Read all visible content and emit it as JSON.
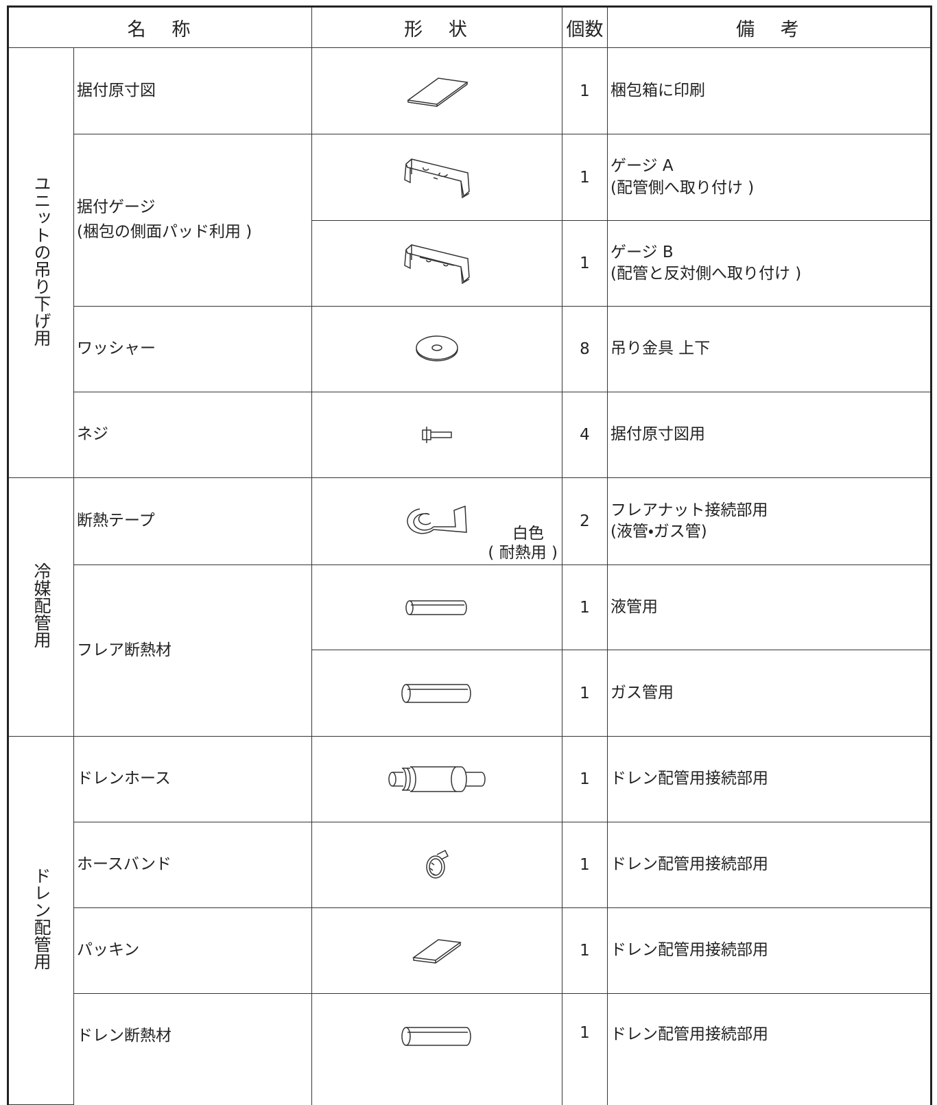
{
  "table": {
    "header": [
      "名称",
      "形状",
      "個数",
      "備考"
    ],
    "groups": [
      {
        "label": "ユニットの吊り下げ用",
        "items": [
          {
            "name": [
              "据付原寸図"
            ],
            "rows": [
              {
                "count": 1,
                "remarks": [
                  "梱包箱に印刷"
                ]
              }
            ]
          },
          {
            "name": [
              "据付ゲージ",
              "(梱包の側面パッド利用 )"
            ],
            "rows": [
              {
                "count": 1,
                "remarks": [
                  "ゲージ A",
                  "(配管側へ取り付け )"
                ]
              },
              {
                "count": 1,
                "remarks": [
                  "ゲージ B",
                  "(配管と反対側へ取り付け )"
                ]
              }
            ]
          },
          {
            "name": [
              "ワッシャー"
            ],
            "rows": [
              {
                "count": 8,
                "remarks": [
                  "吊り金具 上下"
                ]
              }
            ]
          },
          {
            "name": [
              "ネジ"
            ],
            "rows": [
              {
                "count": 4,
                "remarks": [
                  "据付原寸図用"
                ]
              }
            ]
          }
        ]
      },
      {
        "label": "冷媒配管用",
        "items": [
          {
            "name": [
              "断熱テープ"
            ],
            "shape_note": [
              "白色",
              "( 耐熱用 )"
            ],
            "rows": [
              {
                "count": 2,
                "remarks": [
                  "フレアナット接続部用",
                  "(液管・ガス管)"
                ]
              }
            ]
          },
          {
            "name": [
              "フレア断熱材"
            ],
            "rows": [
              {
                "count": 1,
                "remarks": [
                  "液管用"
                ]
              },
              {
                "count": 1,
                "remarks": [
                  "ガス管用"
                ]
              }
            ]
          }
        ]
      },
      {
        "label": "ドレン配管用",
        "items": [
          {
            "name": [
              "ドレンホース"
            ],
            "rows": [
              {
                "count": 1,
                "remarks": [
                  "ドレン配管用接続部用"
                ]
              }
            ]
          },
          {
            "name": [
              "ホースバンド"
            ],
            "rows": [
              {
                "count": 1,
                "remarks": [
                  "ドレン配管用接続部用"
                ]
              }
            ]
          },
          {
            "name": [
              "パッキン"
            ],
            "rows": [
              {
                "count": 1,
                "remarks": [
                  "ドレン配管用接続部用"
                ]
              }
            ]
          },
          {
            "name": [
              "ドレン断熱材"
            ],
            "rows": [
              {
                "count": 1,
                "remarks": [
                  "ドレン配管用接続部用"
                ]
              }
            ]
          }
        ]
      }
    ]
  }
}
